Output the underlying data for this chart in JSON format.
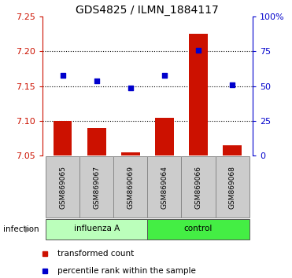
{
  "title": "GDS4825 / ILMN_1884117",
  "samples": [
    "GSM869065",
    "GSM869067",
    "GSM869069",
    "GSM869064",
    "GSM869066",
    "GSM869068"
  ],
  "red_values": [
    7.1,
    7.09,
    7.055,
    7.105,
    7.225,
    7.065
  ],
  "blue_values": [
    7.165,
    7.158,
    7.148,
    7.165,
    7.202,
    7.152
  ],
  "ylim_left": [
    7.05,
    7.25
  ],
  "yticks_left": [
    7.05,
    7.1,
    7.15,
    7.2,
    7.25
  ],
  "yticks_right": [
    0,
    25,
    50,
    75,
    100
  ],
  "yticks_right_labels": [
    "0",
    "25",
    "50",
    "75",
    "100%"
  ],
  "baseline": 7.05,
  "group1_label": "influenza A",
  "group2_label": "control",
  "group1_indices": [
    0,
    1,
    2
  ],
  "group2_indices": [
    3,
    4,
    5
  ],
  "infection_label": "infection",
  "legend_red": "transformed count",
  "legend_blue": "percentile rank within the sample",
  "bar_color": "#cc1100",
  "dot_color": "#0000cc",
  "group1_color": "#bbffbb",
  "group2_color": "#44ee44",
  "bg_gray": "#cccccc",
  "title_fontsize": 10,
  "tick_fontsize": 8,
  "label_fontsize": 8
}
